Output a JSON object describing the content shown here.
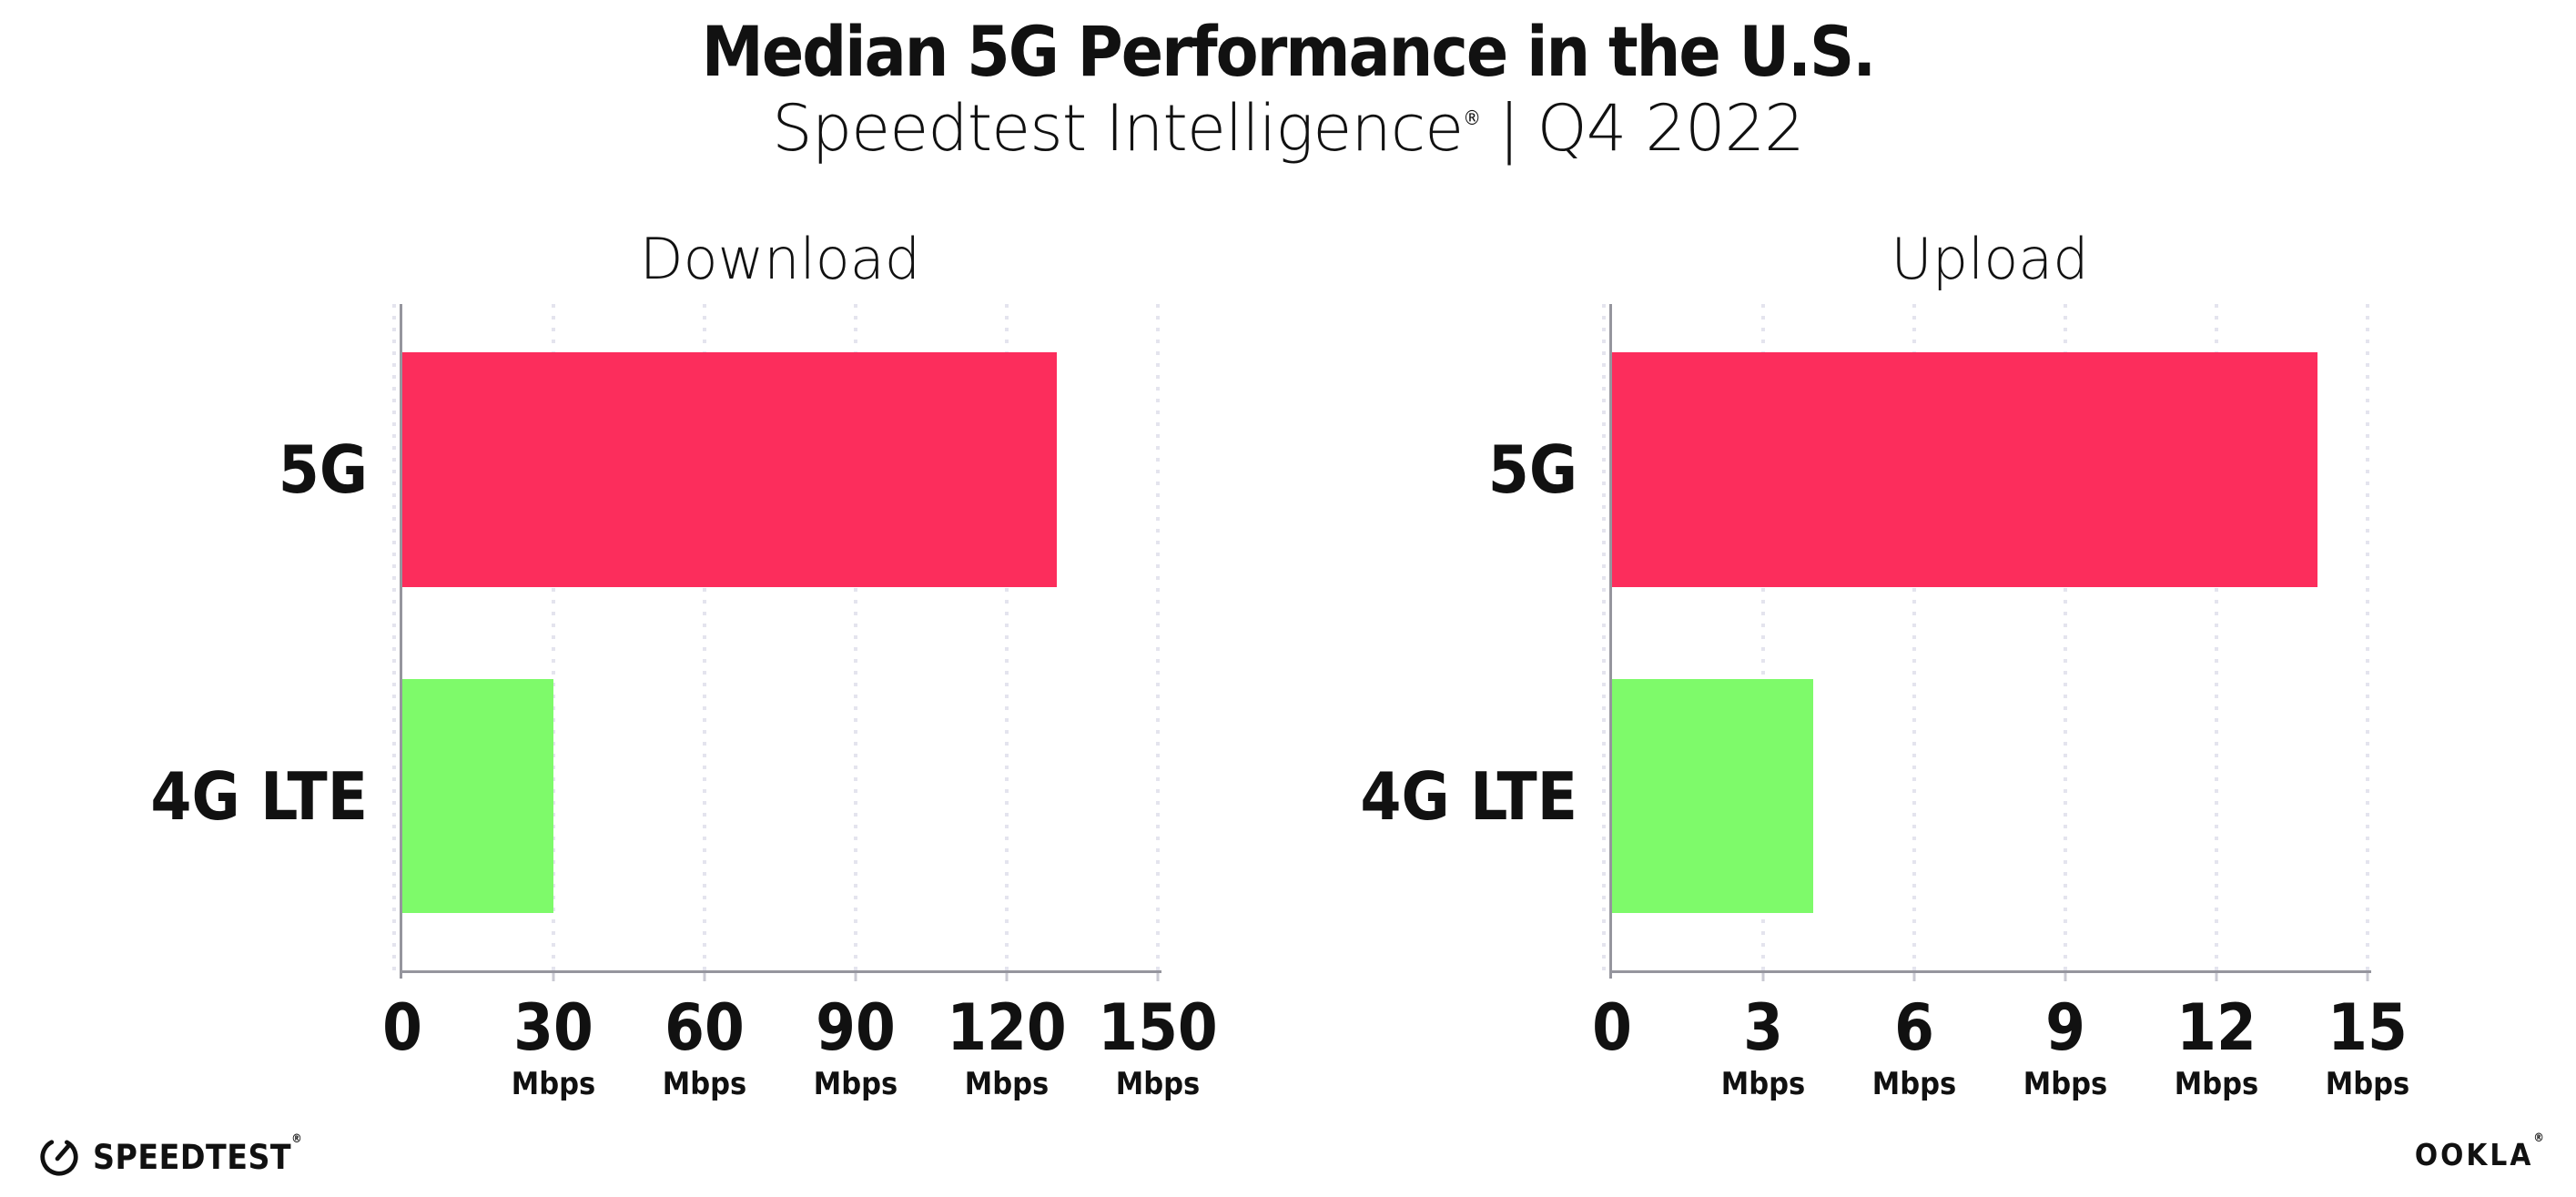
{
  "title": "Median 5G Performance in the U.S.",
  "subtitle": {
    "brand": "Speedtest Intelligence",
    "registered_mark": "®",
    "separator": "|",
    "period": "Q4 2022"
  },
  "colors": {
    "bar_5g": "#fc2d5c",
    "bar_4g_lte": "#7efa6a",
    "gridline": "#e4e4ee",
    "axis": "#95959d",
    "text": "#111111",
    "background": "#ffffff"
  },
  "chart_data": [
    {
      "type": "bar",
      "orientation": "horizontal",
      "title": "Download",
      "categories": [
        "5G",
        "4G LTE"
      ],
      "values": [
        130,
        30
      ],
      "unit": "Mbps",
      "xlim": [
        0,
        150
      ],
      "xticks": [
        0,
        30,
        60,
        90,
        120,
        150
      ],
      "bar_colors": [
        "#fc2d5c",
        "#7efa6a"
      ],
      "grid": "dotted-vertical",
      "legend": "none"
    },
    {
      "type": "bar",
      "orientation": "horizontal",
      "title": "Upload",
      "categories": [
        "5G",
        "4G LTE"
      ],
      "values": [
        14,
        4
      ],
      "unit": "Mbps",
      "xlim": [
        0,
        15
      ],
      "xticks": [
        0,
        3,
        6,
        9,
        12,
        15
      ],
      "bar_colors": [
        "#fc2d5c",
        "#7efa6a"
      ],
      "grid": "dotted-vertical",
      "legend": "none"
    }
  ],
  "footer": {
    "speedtest_text": "SPEEDTEST",
    "speedtest_mark": "®",
    "ookla_text": "OOKLA",
    "ookla_mark": "®"
  }
}
